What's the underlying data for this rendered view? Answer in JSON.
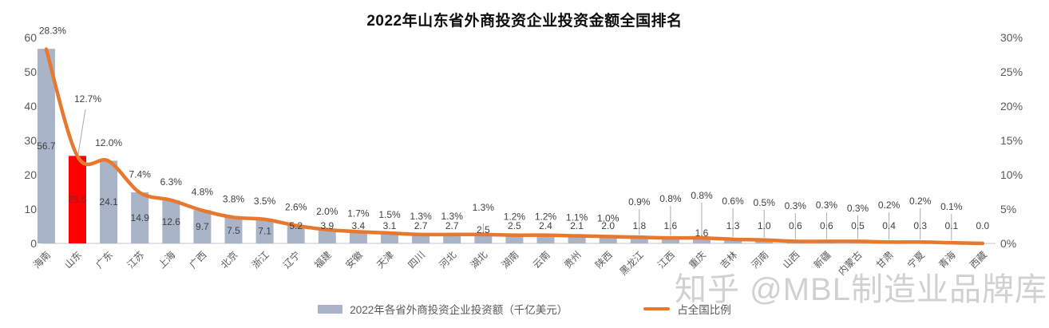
{
  "title": "2022年山东省外商投资企业投资金额全国排名",
  "watermark": "知乎 @MBL制造业品牌库",
  "legend": {
    "bar_label": "2022年各省外商投资企业投资额（千亿美元）",
    "line_label": "占全国比例"
  },
  "colors": {
    "bar": "#A9B4C8",
    "bar_highlight": "#FF0000",
    "line": "#E8782E",
    "axis_text": "#595959",
    "label_text": "#404040",
    "leader": "#ABABAB",
    "axis_line": "#D9D9D9"
  },
  "chart_data": {
    "type": "bar",
    "combo": "bar+line",
    "title": "2022年山东省外商投资企业投资金额全国排名",
    "categories": [
      "海南",
      "山东",
      "广东",
      "江苏",
      "上海",
      "广西",
      "北京",
      "浙江",
      "辽宁",
      "福建",
      "安徽",
      "天津",
      "四川",
      "河北",
      "湖北",
      "湖南",
      "云南",
      "贵州",
      "陕西",
      "黑龙江",
      "江西",
      "重庆",
      "吉林",
      "河南",
      "山西",
      "新疆",
      "内蒙古",
      "甘肃",
      "宁夏",
      "青海",
      "西藏"
    ],
    "highlight_category": "山东",
    "series": [
      {
        "name": "2022年各省外商投资企业投资额（千亿美元）",
        "type": "bar",
        "values": [
          56.7,
          25.5,
          24.1,
          14.9,
          12.6,
          9.7,
          7.5,
          7.1,
          5.2,
          3.9,
          3.4,
          3.1,
          2.7,
          2.7,
          2.5,
          2.5,
          2.4,
          2.1,
          2.0,
          1.8,
          1.6,
          1.6,
          1.3,
          1.0,
          0.6,
          0.6,
          0.5,
          0.4,
          0.3,
          0.1,
          0.0
        ]
      },
      {
        "name": "占全国比例",
        "type": "line",
        "values": [
          28.3,
          12.7,
          12.0,
          7.4,
          6.3,
          4.8,
          3.8,
          3.5,
          2.6,
          2.0,
          1.7,
          1.5,
          1.3,
          1.3,
          1.3,
          1.2,
          1.2,
          1.1,
          1.0,
          0.9,
          0.8,
          0.8,
          0.6,
          0.5,
          0.3,
          0.3,
          0.3,
          0.2,
          0.2,
          0.1,
          0.0
        ],
        "labels": [
          "28.3%",
          "12.7%",
          "12.0%",
          "7.4%",
          "6.3%",
          "4.8%",
          "3.8%",
          "3.5%",
          "2.6%",
          "2.0%",
          "1.7%",
          "1.5%",
          "1.3%",
          "1.3%",
          "1.3%",
          "1.2%",
          "1.2%",
          "1.1%",
          "1.0%",
          "0.9%",
          "0.8%",
          "0.8%",
          "0.6%",
          "0.5%",
          "0.3%",
          "0.3%",
          "0.3%",
          "0.2%",
          "0.2%",
          "0.1%",
          ""
        ]
      }
    ],
    "xlabel": "",
    "ylabel_left": "",
    "ylabel_right": "",
    "left_axis": {
      "min": 0,
      "max": 60,
      "ticks": [
        0,
        10,
        20,
        30,
        40,
        50,
        60
      ]
    },
    "right_axis": {
      "min": "0%",
      "max": "30%",
      "ticks": [
        "0%",
        "5%",
        "10%",
        "15%",
        "20%",
        "25%",
        "30%"
      ]
    },
    "grid": false,
    "legend_position": "bottom"
  }
}
